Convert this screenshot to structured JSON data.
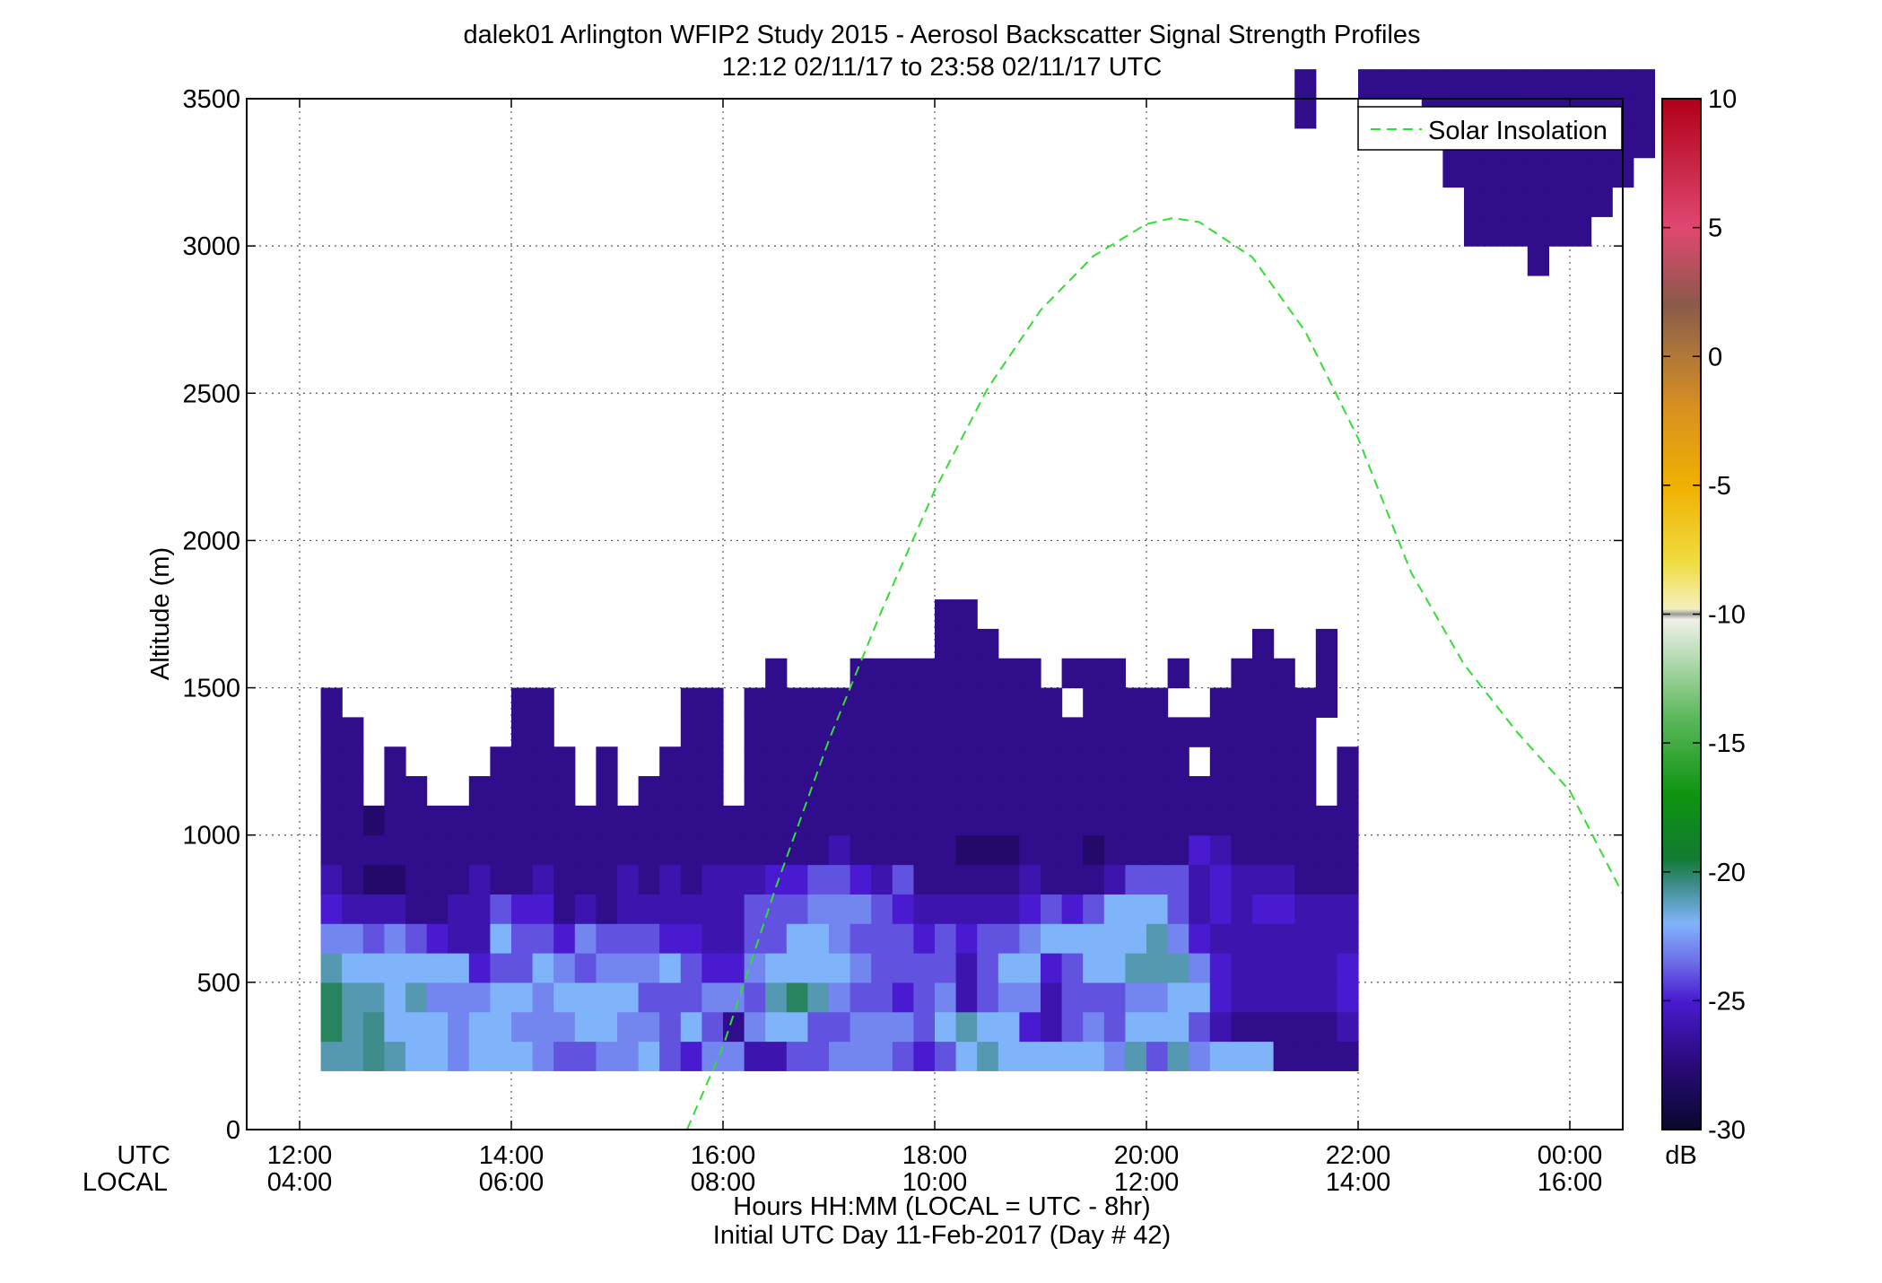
{
  "chart_data": {
    "type": "heatmap",
    "title_line1": "dalek01 Arlington WFIP2 Study 2015 - Aerosol Backscatter Signal Strength Profiles",
    "title_line2": "12:12 02/11/17 to 23:58 02/11/17  UTC",
    "ylabel": "Altitude (m)",
    "xlabel_line1": "Hours HH:MM  (LOCAL = UTC - 8hr)",
    "xlabel_line2": "Initial UTC Day 11-Feb-2017 (Day # 42)",
    "x_row_labels": [
      "UTC",
      "LOCAL"
    ],
    "xlim": [
      11.5,
      24.5
    ],
    "ylim": [
      0,
      3500
    ],
    "x_ticks": [
      12,
      14,
      16,
      18,
      20,
      22,
      24
    ],
    "x_tick_labels_utc": [
      "12:00",
      "14:00",
      "16:00",
      "18:00",
      "20:00",
      "22:00",
      "00:00"
    ],
    "x_tick_labels_local": [
      "04:00",
      "06:00",
      "08:00",
      "10:00",
      "12:00",
      "14:00",
      "16:00"
    ],
    "y_ticks": [
      0,
      500,
      1000,
      1500,
      2000,
      2500,
      3000,
      3500
    ],
    "y_tick_labels": [
      "0",
      "500",
      "1000",
      "1500",
      "2000",
      "2500",
      "3000",
      "3500"
    ],
    "grid": true,
    "legend": {
      "entries": [
        "Solar Insolation"
      ],
      "placement": "top-right",
      "series_color": "#33dd33"
    },
    "colorbar": {
      "unit": "dB",
      "range": [
        -30,
        10
      ],
      "ticks": [
        10,
        5,
        0,
        -5,
        -10,
        -15,
        -20,
        -25,
        -30
      ],
      "tick_labels": [
        "10",
        "5",
        "0",
        "-5",
        "-10",
        "-15",
        "-20",
        "-25",
        "-30"
      ],
      "stops": [
        {
          "value": -30,
          "color": "#080830"
        },
        {
          "value": -27.5,
          "color": "#2a0a78"
        },
        {
          "value": -25,
          "color": "#4a1ad0"
        },
        {
          "value": -23.5,
          "color": "#6d6ee8"
        },
        {
          "value": -22,
          "color": "#80b4fa"
        },
        {
          "value": -20.5,
          "color": "#3e8c8c"
        },
        {
          "value": -19.5,
          "color": "#127a32"
        },
        {
          "value": -17,
          "color": "#0e9410"
        },
        {
          "value": -14,
          "color": "#5cb85c"
        },
        {
          "value": -11,
          "color": "#cfe6cc"
        },
        {
          "value": -10.2,
          "color": "#f0f0e6"
        },
        {
          "value": -10,
          "color": "#9a9a9a"
        },
        {
          "value": -9.8,
          "color": "#f4f0c0"
        },
        {
          "value": -8,
          "color": "#f0dc40"
        },
        {
          "value": -5,
          "color": "#f0b000"
        },
        {
          "value": -2,
          "color": "#d89020"
        },
        {
          "value": 0,
          "color": "#b07838"
        },
        {
          "value": 2,
          "color": "#8a5a4a"
        },
        {
          "value": 5,
          "color": "#e04870"
        },
        {
          "value": 10,
          "color": "#b00018"
        }
      ]
    },
    "solar_insolation": {
      "x": [
        15.66,
        16,
        16.5,
        17,
        17.5,
        18,
        18.5,
        19,
        19.5,
        20,
        20.25,
        20.5,
        21,
        21.5,
        22,
        22.5,
        23,
        23.5,
        24,
        24.5
      ],
      "y": [
        0,
        282,
        823,
        1322,
        1763,
        2170,
        2516,
        2782,
        2966,
        3074,
        3095,
        3081,
        2962,
        2710,
        2347,
        1892,
        1580,
        1350,
        1150,
        800
      ]
    },
    "heatmap": {
      "x_start": 12.2,
      "x_step": 0.2,
      "y_start": 200,
      "y_step": 100,
      "value_unit": "dB",
      "rows": [
        [
          -21,
          -21,
          -20.5,
          -21,
          -22,
          -22,
          -23,
          -22,
          -22,
          -22,
          -23,
          -24,
          -24,
          -23,
          -23,
          -22,
          -24,
          -25,
          -23,
          -23,
          -26,
          -26,
          -24,
          -24,
          -23,
          -23,
          -23,
          -24,
          -25,
          -24,
          -22,
          -21,
          -22,
          -22,
          -22,
          -22,
          -22,
          -23,
          -21,
          -24,
          -21,
          -23,
          -22,
          -22,
          -22,
          -27,
          -27,
          -27,
          -27
        ],
        [
          -20,
          -21,
          -20.5,
          -22,
          -22,
          -22,
          -23,
          -22,
          -22,
          -23,
          -23,
          -23,
          -22,
          -22,
          -23,
          -23,
          -24,
          -22,
          -24,
          -27,
          -23,
          -22,
          -22,
          -24,
          -24,
          -23,
          -23,
          -23,
          -24,
          -22,
          -21,
          -22,
          -22,
          -25,
          -26,
          -24,
          -23,
          -24,
          -22,
          -22,
          -22,
          -24,
          -26,
          -27,
          -27,
          -27,
          -27,
          -27,
          -26
        ],
        [
          -20,
          -21,
          -21,
          -22,
          -21,
          -23,
          -23,
          -23,
          -22,
          -22,
          -23,
          -22,
          -22,
          -22,
          -22,
          -24,
          -24,
          -24,
          -23,
          -23,
          -24,
          -21,
          -20,
          -21,
          -23,
          -24,
          -24,
          -25,
          -24,
          -23,
          -26,
          -24,
          -23,
          -23,
          -26,
          -24,
          -24,
          -24,
          -23,
          -23,
          -22,
          -22,
          -25,
          -26,
          -26,
          -26,
          -26,
          -26,
          -25
        ],
        [
          -21,
          -22,
          -22,
          -22,
          -22,
          -22,
          -22,
          -25,
          -24,
          -24,
          -22,
          -23,
          -24,
          -23,
          -23,
          -23,
          -22,
          -24,
          -25,
          -25,
          -23,
          -22,
          -22,
          -22,
          -22,
          -23,
          -24,
          -24,
          -24,
          -24,
          -26,
          -24,
          -22,
          -22,
          -25,
          -24,
          -22,
          -22,
          -21,
          -21,
          -21,
          -23,
          -25,
          -26,
          -26,
          -26,
          -26,
          -26,
          -25
        ],
        [
          -23,
          -23,
          -24,
          -23,
          -24,
          -25,
          -26,
          -26,
          -22,
          -24,
          -24,
          -25,
          -23,
          -24,
          -24,
          -24,
          -25,
          -25,
          -26,
          -26,
          -24,
          -24,
          -22,
          -22,
          -23,
          -24,
          -24,
          -24,
          -25,
          -24,
          -25,
          -24,
          -24,
          -23,
          -22,
          -22,
          -22,
          -22,
          -22,
          -21,
          -23,
          -25,
          -26,
          -26,
          -26,
          -26,
          -26,
          -26,
          -26
        ],
        [
          -25,
          -26,
          -26,
          -26,
          -27,
          -27,
          -26,
          -26,
          -24,
          -25,
          -25,
          -27,
          -26,
          -27,
          -26,
          -26,
          -26,
          -26,
          -26,
          -26,
          -24,
          -24,
          -24,
          -23,
          -23,
          -23,
          -24,
          -25,
          -26,
          -26,
          -26,
          -26,
          -26,
          -25,
          -24,
          -25,
          -24,
          -22,
          -22,
          -22,
          -24,
          -26,
          -25,
          -26,
          -25,
          -25,
          -26,
          -26,
          -26
        ],
        [
          -26,
          -27,
          -28,
          -28,
          -27,
          -27,
          -27,
          -26,
          -27,
          -27,
          -26,
          -27,
          -27,
          -27,
          -26,
          -27,
          -26,
          -27,
          -26,
          -26,
          -26,
          -25,
          -25,
          -24,
          -24,
          -25,
          -26,
          -24,
          -27,
          -27,
          -27,
          -27,
          -27,
          -26,
          -27,
          -27,
          -27,
          -26,
          -24,
          -24,
          -24,
          -26,
          -25,
          -26,
          -26,
          -26,
          -27,
          -27,
          -27
        ],
        [
          -27,
          -27,
          -27,
          -27,
          -27,
          -27,
          -27,
          -27,
          -27,
          -27,
          -27,
          -27,
          -27,
          -27,
          -27,
          -27,
          -27,
          -27,
          -27,
          -27,
          -27,
          -27,
          -27,
          -27,
          -26,
          -27,
          -27,
          -27,
          -27,
          -27,
          -28,
          -28,
          -28,
          -27,
          -27,
          -27,
          -28,
          -27,
          -27,
          -27,
          -27,
          -25,
          -26,
          -27,
          -27,
          -27,
          -27,
          -27,
          -27
        ],
        [
          -27,
          -27,
          -28,
          -27,
          -27,
          -27,
          -27,
          -27,
          -27,
          -27,
          -27,
          -27,
          -27,
          -27,
          -27,
          -27,
          -27,
          -27,
          -27,
          -27,
          -27,
          -27,
          -27,
          -27,
          -27,
          -27,
          -27,
          -27,
          -27,
          -27,
          -27,
          -27,
          -27,
          -27,
          -27,
          -27,
          -27,
          -27,
          -27,
          -27,
          -27,
          -27,
          -27,
          -27,
          -27,
          -27,
          -27,
          -27,
          -27
        ],
        [
          -27,
          -27,
          null,
          -27,
          -27,
          null,
          null,
          -27,
          -27,
          -27,
          -27,
          -27,
          null,
          -27,
          null,
          -27,
          -27,
          -27,
          -27,
          null,
          -27,
          -27,
          -27,
          -27,
          -27,
          -27,
          -27,
          -27,
          -27,
          -27,
          -27,
          -27,
          -27,
          -27,
          -27,
          -27,
          -27,
          -27,
          -27,
          -27,
          -27,
          -27,
          -27,
          -27,
          -27,
          -27,
          -27,
          null,
          -27
        ],
        [
          -27,
          -27,
          null,
          -27,
          null,
          null,
          null,
          null,
          -27,
          -27,
          -27,
          -27,
          null,
          -27,
          null,
          null,
          -27,
          -27,
          -27,
          null,
          -27,
          -27,
          -27,
          -27,
          -27,
          -27,
          -27,
          -27,
          -27,
          -27,
          -27,
          -27,
          -27,
          -27,
          -27,
          -27,
          -27,
          -27,
          -27,
          -27,
          -27,
          null,
          -27,
          -27,
          -27,
          -27,
          -27,
          null,
          -27
        ],
        [
          -27,
          -27,
          null,
          null,
          null,
          null,
          null,
          null,
          null,
          -27,
          -27,
          null,
          null,
          null,
          null,
          null,
          null,
          -27,
          -27,
          null,
          -27,
          -27,
          -27,
          -27,
          -27,
          -27,
          -27,
          -27,
          -27,
          -27,
          -27,
          -27,
          -27,
          -27,
          -27,
          -27,
          -27,
          -27,
          -27,
          -27,
          -27,
          -27,
          -27,
          -27,
          -27,
          -27,
          -27,
          null,
          null
        ],
        [
          -27,
          null,
          null,
          null,
          null,
          null,
          null,
          null,
          null,
          -27,
          -27,
          null,
          null,
          null,
          null,
          null,
          null,
          -27,
          -27,
          null,
          -27,
          -27,
          -27,
          -27,
          -27,
          -27,
          -27,
          -27,
          -27,
          -27,
          -27,
          -27,
          -27,
          -27,
          -27,
          null,
          -27,
          -27,
          -27,
          -27,
          null,
          null,
          -27,
          -27,
          -27,
          -27,
          -27,
          -27,
          null
        ],
        [
          null,
          null,
          null,
          null,
          null,
          null,
          null,
          null,
          null,
          null,
          null,
          null,
          null,
          null,
          null,
          null,
          null,
          null,
          null,
          null,
          null,
          -27,
          null,
          null,
          null,
          -27,
          -27,
          -27,
          -27,
          -27,
          -27,
          -27,
          -27,
          -27,
          null,
          -27,
          -27,
          -27,
          null,
          null,
          -27,
          null,
          null,
          -27,
          -27,
          -27,
          null,
          -27,
          null
        ],
        [
          null,
          null,
          null,
          null,
          null,
          null,
          null,
          null,
          null,
          null,
          null,
          null,
          null,
          null,
          null,
          null,
          null,
          null,
          null,
          null,
          null,
          null,
          null,
          null,
          null,
          null,
          null,
          null,
          null,
          -27,
          -27,
          -27,
          null,
          null,
          null,
          null,
          null,
          null,
          null,
          null,
          null,
          null,
          null,
          null,
          -27,
          null,
          null,
          -27,
          null
        ],
        [
          null,
          null,
          null,
          null,
          null,
          null,
          null,
          null,
          null,
          null,
          null,
          null,
          null,
          null,
          null,
          null,
          null,
          null,
          null,
          null,
          null,
          null,
          null,
          null,
          null,
          null,
          null,
          null,
          null,
          -27,
          -27,
          null,
          null,
          null,
          null,
          null,
          null,
          null,
          null,
          null,
          null,
          null,
          null,
          null,
          null,
          null,
          null,
          null,
          null
        ]
      ],
      "upper_x_start": 21.4,
      "upper_y_start": 2900,
      "upper_rows": [
        [
          null,
          null,
          null,
          null,
          null,
          null,
          null,
          null,
          null,
          null,
          null,
          -27,
          null,
          null,
          null,
          null,
          null,
          null,
          null
        ],
        [
          null,
          null,
          null,
          null,
          null,
          null,
          null,
          null,
          -27,
          -27,
          -27,
          -27,
          -27,
          -27,
          null,
          null,
          null,
          null,
          null
        ],
        [
          null,
          null,
          null,
          null,
          null,
          null,
          null,
          null,
          -27,
          -27,
          -27,
          -27,
          -27,
          -27,
          -27,
          null,
          null,
          null,
          null
        ],
        [
          null,
          null,
          null,
          null,
          null,
          null,
          null,
          -27,
          -27,
          -27,
          -27,
          -27,
          -27,
          -27,
          -27,
          -27,
          null,
          null,
          null
        ],
        [
          null,
          null,
          null,
          null,
          null,
          null,
          null,
          -27,
          -27,
          -27,
          -27,
          -27,
          -27,
          -27,
          -27,
          -27,
          -27,
          null,
          null
        ],
        [
          -27,
          null,
          null,
          null,
          null,
          null,
          -27,
          -27,
          -27,
          -27,
          -27,
          -27,
          -27,
          -27,
          -27,
          -27,
          -27,
          null,
          null
        ],
        [
          -27,
          null,
          null,
          -27,
          -27,
          -27,
          -27,
          -27,
          -27,
          -27,
          -27,
          -27,
          -27,
          -27,
          -27,
          -27,
          -27,
          null,
          null
        ]
      ]
    }
  }
}
